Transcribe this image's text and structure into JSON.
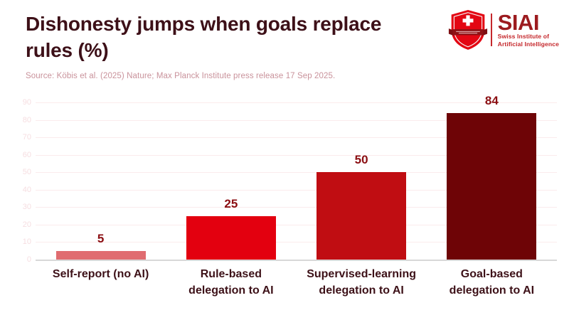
{
  "header": {
    "title": "Dishonesty jumps when goals replace rules (%)",
    "title_line1": "Dishonesty jumps when goals replace",
    "title_line2": "rules (%)",
    "source": "Source: Köbis et al. (2025) Nature; Max Planck Institute press release 17 Sep 2025."
  },
  "logo": {
    "acronym": "SIAI",
    "tagline_line1": "Swiss Institute of",
    "tagline_line2": "Artificial Intelligence",
    "shield_color": "#E30613",
    "ribbon_color": "#8F1216",
    "acronym_color": "#9C1B1F",
    "tagline_color": "#C5282C"
  },
  "chart_data": {
    "type": "bar",
    "title": "Dishonesty jumps when goals replace rules (%)",
    "categories": [
      "Self-report (no AI)",
      "Rule-based delegation to AI",
      "Supervised-learning delegation to AI",
      "Goal-based delegation to AI"
    ],
    "category_lines": [
      [
        "Self-report (no AI)"
      ],
      [
        "Rule-based",
        "delegation to AI"
      ],
      [
        "Supervised-learning",
        "delegation to AI"
      ],
      [
        "Goal-based",
        "delegation to AI"
      ]
    ],
    "values": [
      5,
      25,
      50,
      84
    ],
    "bar_colors": [
      "#E06C70",
      "#E3000F",
      "#C00D12",
      "#6E0406"
    ],
    "xlabel": "",
    "ylabel": "",
    "ylim": [
      0,
      90
    ],
    "ytick_step": 10,
    "grid": true,
    "legend": "none",
    "value_label_color": "#8B0E12",
    "category_label_color": "#3D1118",
    "gridline_color": "#FBEBEC",
    "tick_label_color": "#F6DEE1",
    "baseline_color": "#D8D8D8"
  }
}
